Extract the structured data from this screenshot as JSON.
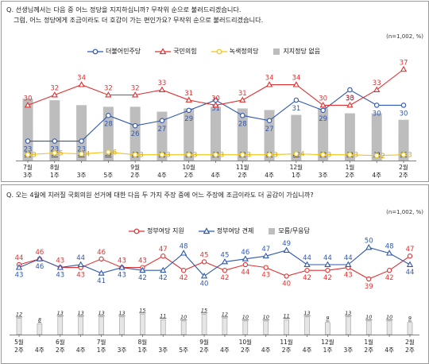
{
  "chart_data": [
    {
      "type": "line",
      "question": "Q. 선생님께서는 다음 중 어느 정당을 지지하십니까? 무작위 순으로 불러드리겠습니다.",
      "question_followup": "그럼, 어느 정당에게 조금이라도 더 호감이 가는 편인가요? 무작위 순으로 불러드리겠습니다.",
      "note": "(n=1,002, %)",
      "categories": [
        [
          "7월",
          "3주"
        ],
        [
          "8월",
          "1주"
        ],
        [
          "3주"
        ],
        [
          "5주"
        ],
        [
          "9월",
          "2주"
        ],
        [
          "4주"
        ],
        [
          "10월",
          "2주"
        ],
        [
          "4주"
        ],
        [
          "11월",
          "2주"
        ],
        [
          "4주"
        ],
        [
          "12월",
          "1주"
        ],
        [
          "3주"
        ],
        [
          "1월",
          "2주"
        ],
        [
          "4주"
        ],
        [
          "2월",
          "2주"
        ]
      ],
      "series": [
        {
          "name": "더불어민주당",
          "color": "#2f58b0",
          "marker": "circle",
          "values": [
            23,
            23,
            23,
            28,
            26,
            27,
            29,
            31,
            28,
            27,
            31,
            29,
            33,
            30,
            30
          ]
        },
        {
          "name": "국민의힘",
          "color": "#e03030",
          "marker": "triangle",
          "values": [
            30,
            32,
            34,
            32,
            32,
            33,
            31,
            30,
            31,
            34,
            34,
            30,
            30,
            33,
            37
          ]
        },
        {
          "name": "녹색정의당",
          "color": "#f0c419",
          "marker": "circle",
          "values": [
            3,
            5,
            4,
            6,
            3,
            3,
            3,
            3,
            3,
            3,
            4,
            3,
            3,
            2,
            3
          ]
        },
        {
          "name": "지지정당 없음",
          "color": "#bdbdbd",
          "marker": "bar",
          "values": [
            38,
            37,
            34,
            33,
            33,
            30,
            32,
            33,
            32,
            31,
            28,
            32,
            29,
            29,
            25
          ]
        }
      ],
      "ylim": [
        0,
        40
      ]
    },
    {
      "type": "line",
      "question": "Q. 오는 4월에 치러질 국회의원 선거에 대한 다음 두 가지 주장 중에 어느 주장에 조금이라도 더 공감이 가십니까?",
      "note": "(n=1,002, %)",
      "categories": [
        [
          "5월",
          "2주"
        ],
        [
          "4주"
        ],
        [
          "6월",
          "2주"
        ],
        [
          "4주"
        ],
        [
          "7월",
          "1주"
        ],
        [
          "3주"
        ],
        [
          "8월",
          "1주"
        ],
        [
          "3주"
        ],
        [
          "5주"
        ],
        [
          "9월",
          "2주"
        ],
        [
          "4주"
        ],
        [
          "10월",
          "2주"
        ],
        [
          "4주"
        ],
        [
          "11월",
          "2주"
        ],
        [
          "4주"
        ],
        [
          "12월",
          "1주"
        ],
        [
          "3주"
        ],
        [
          "1월",
          "2주"
        ],
        [
          "4주"
        ],
        [
          "2월",
          "2주"
        ]
      ],
      "series": [
        {
          "name": "정부여당 지원",
          "color": "#e03030",
          "marker": "circle",
          "values": [
            44,
            46,
            43,
            43,
            46,
            43,
            43,
            47,
            42,
            45,
            42,
            44,
            43,
            40,
            42,
            42,
            43,
            39,
            42,
            47
          ]
        },
        {
          "name": "정부여당 견제",
          "color": "#2f58b0",
          "marker": "triangle",
          "values": [
            43,
            46,
            43,
            44,
            41,
            43,
            42,
            42,
            48,
            40,
            45,
            46,
            47,
            49,
            44,
            44,
            44,
            50,
            48,
            44
          ]
        },
        {
          "name": "모름/무응답",
          "color": "#bdbdbd",
          "marker": "bar",
          "values": [
            12,
            8,
            13,
            13,
            13,
            13,
            15,
            11,
            10,
            15,
            12,
            10,
            10,
            11,
            13,
            9,
            13,
            10,
            10,
            9
          ]
        }
      ],
      "ylim": [
        0,
        55
      ]
    }
  ]
}
